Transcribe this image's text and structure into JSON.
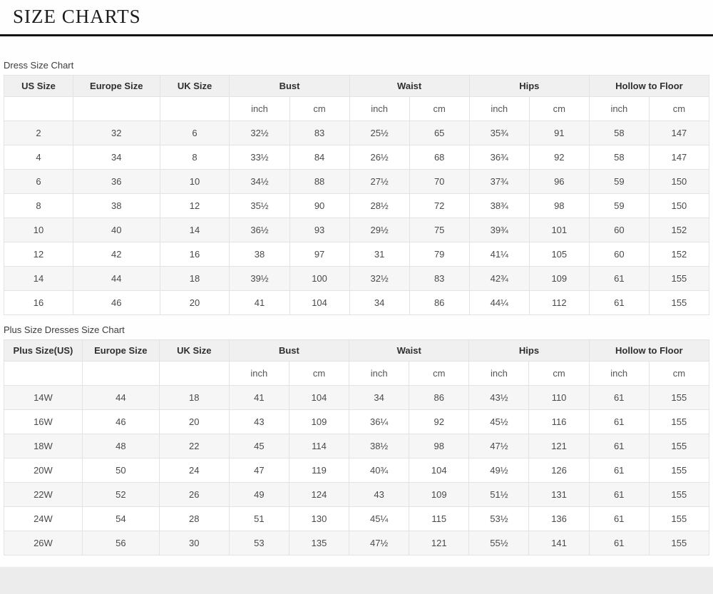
{
  "page": {
    "title": "SIZE CHARTS"
  },
  "tables": [
    {
      "label": "Dress Size Chart",
      "size_col_headers": [
        "US Size",
        "Europe Size",
        "UK Size"
      ],
      "measure_col_headers": [
        "Bust",
        "Waist",
        "Hips",
        "Hollow to Floor"
      ],
      "unit_headers": [
        "inch",
        "cm"
      ],
      "rows": [
        [
          "2",
          "32",
          "6",
          "32½",
          "83",
          "25½",
          "65",
          "35¾",
          "91",
          "58",
          "147"
        ],
        [
          "4",
          "34",
          "8",
          "33½",
          "84",
          "26½",
          "68",
          "36¾",
          "92",
          "58",
          "147"
        ],
        [
          "6",
          "36",
          "10",
          "34½",
          "88",
          "27½",
          "70",
          "37¾",
          "96",
          "59",
          "150"
        ],
        [
          "8",
          "38",
          "12",
          "35½",
          "90",
          "28½",
          "72",
          "38¾",
          "98",
          "59",
          "150"
        ],
        [
          "10",
          "40",
          "14",
          "36½",
          "93",
          "29½",
          "75",
          "39¾",
          "101",
          "60",
          "152"
        ],
        [
          "12",
          "42",
          "16",
          "38",
          "97",
          "31",
          "79",
          "41¼",
          "105",
          "60",
          "152"
        ],
        [
          "14",
          "44",
          "18",
          "39½",
          "100",
          "32½",
          "83",
          "42¾",
          "109",
          "61",
          "155"
        ],
        [
          "16",
          "46",
          "20",
          "41",
          "104",
          "34",
          "86",
          "44¼",
          "112",
          "61",
          "155"
        ]
      ]
    },
    {
      "label": "Plus Size Dresses Size Chart",
      "size_col_headers": [
        "Plus Size(US)",
        "Europe Size",
        "UK Size"
      ],
      "measure_col_headers": [
        "Bust",
        "Waist",
        "Hips",
        "Hollow to Floor"
      ],
      "unit_headers": [
        "inch",
        "cm"
      ],
      "rows": [
        [
          "14W",
          "44",
          "18",
          "41",
          "104",
          "34",
          "86",
          "43½",
          "110",
          "61",
          "155"
        ],
        [
          "16W",
          "46",
          "20",
          "43",
          "109",
          "36¼",
          "92",
          "45½",
          "116",
          "61",
          "155"
        ],
        [
          "18W",
          "48",
          "22",
          "45",
          "114",
          "38½",
          "98",
          "47½",
          "121",
          "61",
          "155"
        ],
        [
          "20W",
          "50",
          "24",
          "47",
          "119",
          "40¾",
          "104",
          "49½",
          "126",
          "61",
          "155"
        ],
        [
          "22W",
          "52",
          "26",
          "49",
          "124",
          "43",
          "109",
          "51½",
          "131",
          "61",
          "155"
        ],
        [
          "24W",
          "54",
          "28",
          "51",
          "130",
          "45¼",
          "115",
          "53½",
          "136",
          "61",
          "155"
        ],
        [
          "26W",
          "56",
          "30",
          "53",
          "135",
          "47½",
          "121",
          "55½",
          "141",
          "61",
          "155"
        ]
      ]
    }
  ],
  "colors": {
    "header_bg": "#f0f0f0",
    "row_alt_bg": "#f6f6f6",
    "border": "#e3e3e3",
    "title_rule": "#141414",
    "bottom_strip": "#ececec"
  }
}
